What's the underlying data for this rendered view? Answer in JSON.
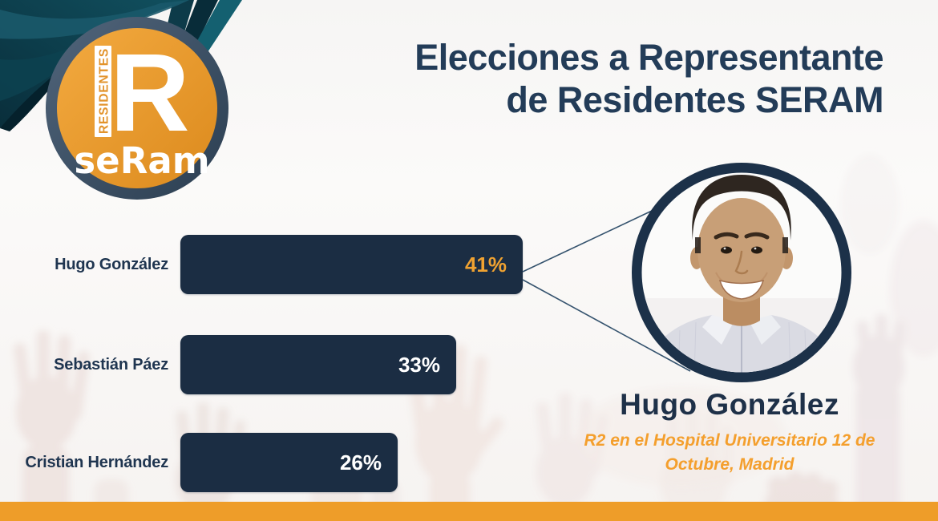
{
  "header": {
    "title_line1": "Elecciones a Representante",
    "title_line2": "de Residentes SERAM"
  },
  "logo": {
    "vertical_text": "RESIDENTES",
    "big_letter": "R",
    "brand": "seRam"
  },
  "chart_data": {
    "type": "bar",
    "orientation": "horizontal",
    "categories": [
      "Hugo González",
      "Sebastián Páez",
      "Cristian Hernández"
    ],
    "values": [
      41,
      33,
      26
    ],
    "value_labels": [
      "41%",
      "33%",
      "26%"
    ],
    "unit": "percent",
    "xlim": [
      0,
      41
    ],
    "grid": false,
    "legend": false,
    "bar_color": "#1B2D43",
    "value_color": "#FFFFFF",
    "highlight_index": 0,
    "highlight_value_color": "#F0A231"
  },
  "winner": {
    "name": "Hugo González",
    "role_line1": "R2 en el Hospital Universitario 12 de",
    "role_line2": "Octubre, Madrid"
  },
  "colors": {
    "accent_orange": "#EE9D29",
    "bar_navy": "#1B2D43",
    "title_navy": "#233C58",
    "ribbon_teal": "#0E4452",
    "photo_ring_navy": "#1C3149"
  }
}
